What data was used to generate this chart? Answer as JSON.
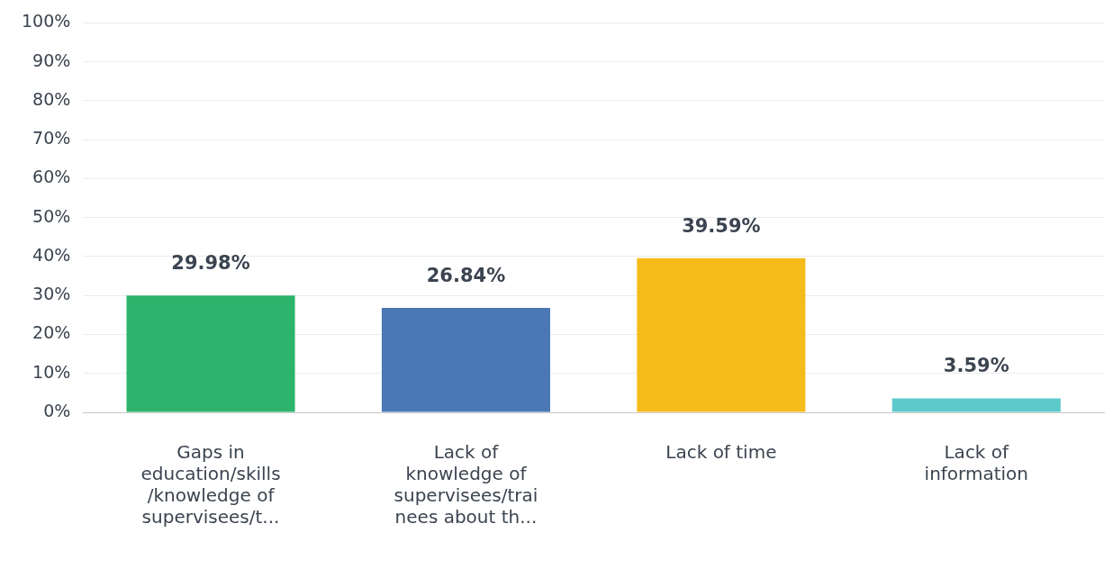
{
  "chart_data": {
    "type": "bar",
    "categories": [
      "Gaps in\neducation/skills\n/knowledge of\nsupervisees/t...",
      "Lack of\nknowledge of\nsupervisees/trai\nnees about th...",
      "Lack of time",
      "Lack of\ninformation"
    ],
    "values": [
      29.98,
      26.84,
      39.59,
      3.59
    ],
    "colors": [
      "#2db36b",
      "#4a78b5",
      "#f5bb1a",
      "#5ccacb"
    ],
    "value_labels": [
      "29.98%",
      "26.84%",
      "39.59%",
      "3.59%"
    ],
    "ylim": [
      0,
      100
    ],
    "yticks": [
      {
        "value": 0,
        "label": "0%"
      },
      {
        "value": 10,
        "label": "10%"
      },
      {
        "value": 20,
        "label": "20%"
      },
      {
        "value": 30,
        "label": "30%"
      },
      {
        "value": 40,
        "label": "40%"
      },
      {
        "value": 50,
        "label": "50%"
      },
      {
        "value": 60,
        "label": "60%"
      },
      {
        "value": 70,
        "label": "70%"
      },
      {
        "value": 80,
        "label": "80%"
      },
      {
        "value": 90,
        "label": "90%"
      },
      {
        "value": 100,
        "label": "100%"
      }
    ],
    "grid": "y"
  }
}
